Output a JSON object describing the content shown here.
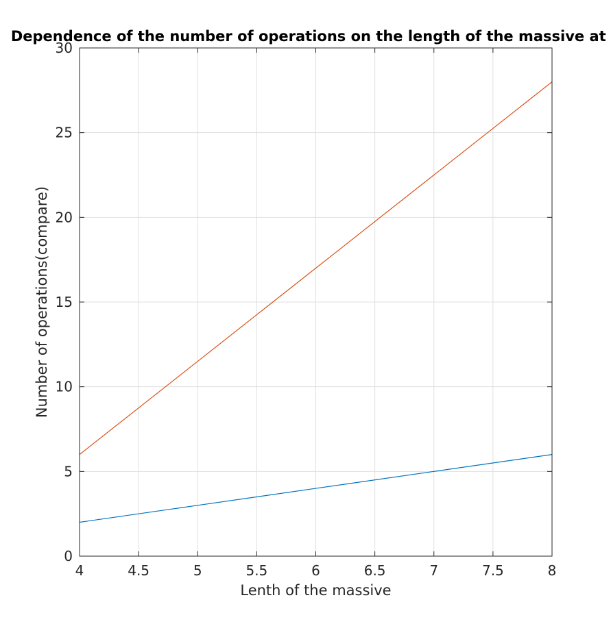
{
  "chart_data": {
    "type": "line",
    "title": "Dependence of the number of operations on the length of the massive at a",
    "xlabel": "Lenth of the massive",
    "ylabel": "Number of operations(compare)",
    "xlim": [
      4,
      8
    ],
    "ylim": [
      0,
      30
    ],
    "xticks": [
      4,
      4.5,
      5,
      5.5,
      6,
      6.5,
      7,
      7.5,
      8
    ],
    "yticks": [
      0,
      5,
      10,
      15,
      20,
      25,
      30
    ],
    "grid": true,
    "series": [
      {
        "x": [
          4,
          5,
          6,
          7,
          8
        ],
        "y": [
          2,
          3,
          4,
          5,
          6
        ],
        "color": "#0072bd"
      },
      {
        "x": [
          4,
          5,
          6,
          7,
          8
        ],
        "y": [
          6,
          11.5,
          17,
          22.5,
          28
        ],
        "color": "#d95319"
      }
    ]
  }
}
